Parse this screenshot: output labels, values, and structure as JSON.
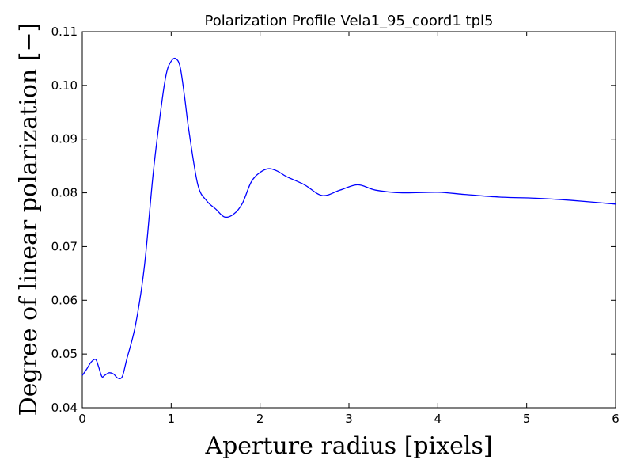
{
  "chart_data": {
    "type": "line",
    "title": "Polarization Profile Vela1_95_coord1 tpl5",
    "xlabel": "Aperture radius [pixels]",
    "ylabel": "Degree of linear polarization [−]",
    "xlim": [
      0,
      6
    ],
    "ylim": [
      0.04,
      0.11
    ],
    "xticks": [
      0,
      1,
      2,
      3,
      4,
      5,
      6
    ],
    "xtick_labels": [
      "0",
      "1",
      "2",
      "3",
      "4",
      "5",
      "6"
    ],
    "yticks": [
      0.04,
      0.05,
      0.06,
      0.07,
      0.08,
      0.09,
      0.1,
      0.11
    ],
    "ytick_labels": [
      "0.04",
      "0.05",
      "0.06",
      "0.07",
      "0.08",
      "0.09",
      "0.10",
      "0.11"
    ],
    "grid": false,
    "legend": "none",
    "series": [
      {
        "color": "#0000ff",
        "x": [
          0,
          0.05,
          0.1,
          0.15,
          0.18,
          0.22,
          0.25,
          0.3,
          0.35,
          0.4,
          0.45,
          0.5,
          0.6,
          0.7,
          0.8,
          0.9,
          0.95,
          1.0,
          1.05,
          1.1,
          1.15,
          1.2,
          1.3,
          1.4,
          1.5,
          1.6,
          1.7,
          1.8,
          1.9,
          2.0,
          2.1,
          2.2,
          2.3,
          2.5,
          2.7,
          2.9,
          3.1,
          3.3,
          3.6,
          4.0,
          4.3,
          4.7,
          5.1,
          5.5,
          6.0
        ],
        "y": [
          0.046,
          0.0472,
          0.0485,
          0.049,
          0.0478,
          0.0458,
          0.046,
          0.0465,
          0.0463,
          0.0455,
          0.0458,
          0.049,
          0.0555,
          0.0665,
          0.084,
          0.0975,
          0.1025,
          0.1045,
          0.105,
          0.1035,
          0.098,
          0.0915,
          0.0815,
          0.0785,
          0.077,
          0.0755,
          0.076,
          0.078,
          0.082,
          0.0838,
          0.0845,
          0.084,
          0.083,
          0.0815,
          0.0795,
          0.0805,
          0.0815,
          0.0805,
          0.08,
          0.0801,
          0.0797,
          0.0792,
          0.079,
          0.0786,
          0.0779
        ]
      }
    ]
  }
}
